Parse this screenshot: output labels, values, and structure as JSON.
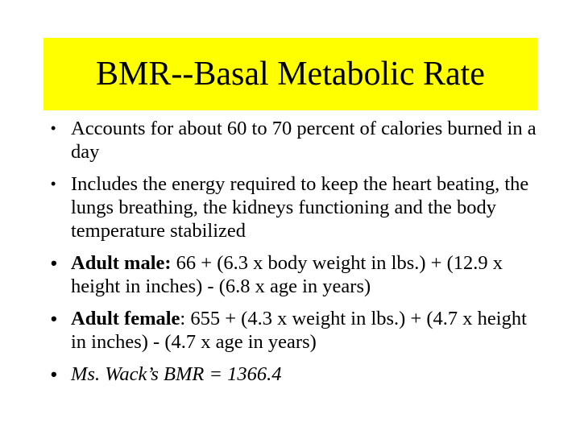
{
  "slide": {
    "background_color": "#ffffff",
    "text_color": "#000000"
  },
  "title": {
    "text": "BMR--Basal Metabolic Rate",
    "banner_bg": "#ffff00"
  },
  "bullets": [
    {
      "marker": "•",
      "emphasis": false,
      "lines": [
        [
          {
            "t": "Accounts for about 60 to 70 percent of calories burned in a"
          }
        ],
        [
          {
            "t": "day"
          }
        ]
      ]
    },
    {
      "marker": "•",
      "emphasis": false,
      "lines": [
        [
          {
            "t": "Includes the energy required to keep the heart beating, the"
          }
        ],
        [
          {
            "t": "lungs breathing, the kidneys functioning and the body"
          }
        ],
        [
          {
            "t": "temperature stabilized"
          }
        ]
      ]
    },
    {
      "marker": "•",
      "emphasis": true,
      "lines": [
        [
          {
            "t": "Adult male:",
            "b": true
          },
          {
            "t": " 66 + (6.3 x body weight in lbs.) + (12.9 x"
          }
        ],
        [
          {
            "t": "height in inches) - (6.8 x age in years)"
          }
        ]
      ]
    },
    {
      "marker": "•",
      "emphasis": true,
      "lines": [
        [
          {
            "t": "Adult female",
            "b": true
          },
          {
            "t": ": 655 + (4.3 x weight in lbs.) + (4.7 x height"
          }
        ],
        [
          {
            "t": "in inches) - (4.7 x age in years)"
          }
        ]
      ]
    },
    {
      "marker": "•",
      "emphasis": true,
      "lines": [
        [
          {
            "t": "Ms. Wack’s BMR = 1366.4",
            "i": true
          }
        ]
      ]
    }
  ]
}
